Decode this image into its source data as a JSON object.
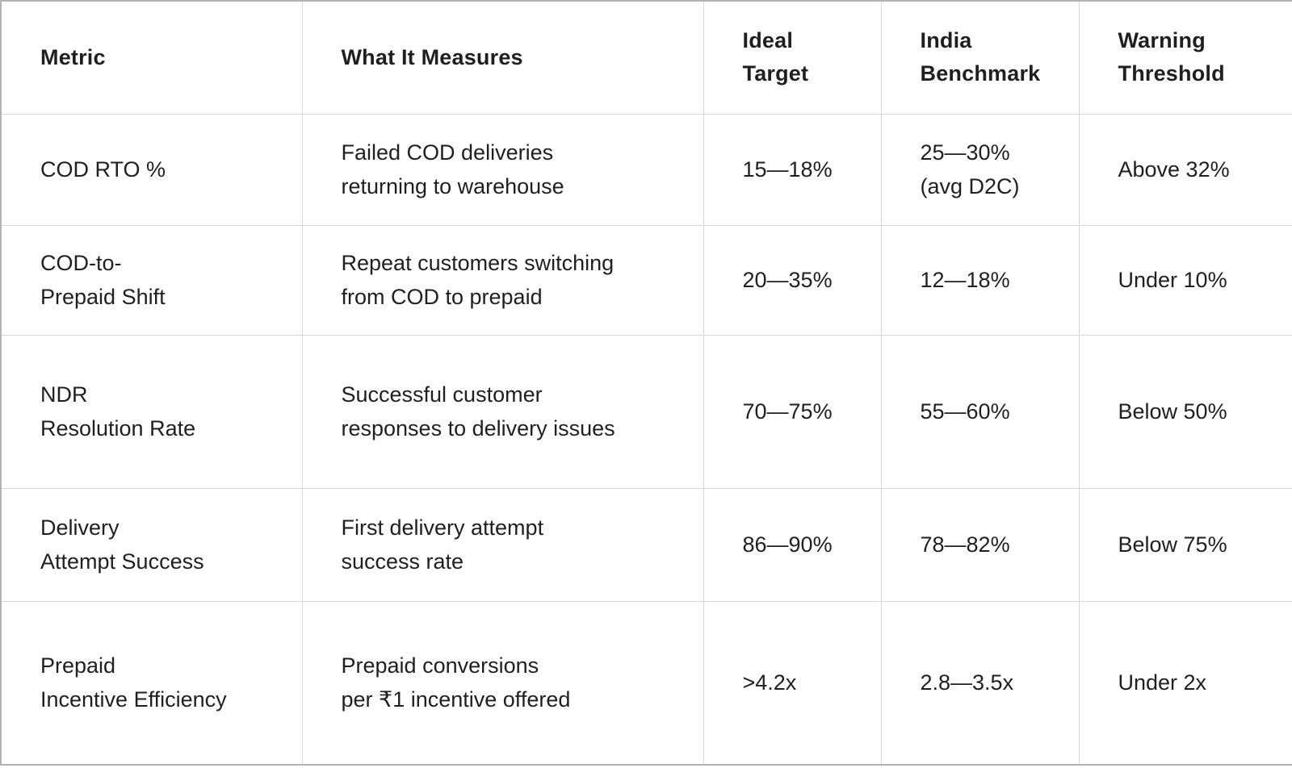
{
  "chart_data": {
    "type": "table",
    "columns": [
      "Metric",
      "What It Measures",
      "Ideal Target",
      "India Benchmark",
      "Warning Threshold"
    ],
    "rows": [
      [
        "COD RTO %",
        "Failed COD deliveries returning to warehouse",
        "15—18%",
        "25—30% (avg D2C)",
        "Above 32%"
      ],
      [
        "COD-to-Prepaid Shift",
        "Repeat customers switching from COD to prepaid",
        "20—35%",
        "12—18%",
        "Under 10%"
      ],
      [
        "NDR Resolution Rate",
        "Successful customer responses to delivery issues",
        "70—75%",
        "55—60%",
        "Below 50%"
      ],
      [
        "Delivery Attempt Success",
        "First delivery attempt success rate",
        "86—90%",
        "78—82%",
        "Below 75%"
      ],
      [
        "Prepaid Incentive Efficiency",
        "Prepaid conversions per ₹1 incentive offered",
        ">4.2x",
        "2.8—3.5x",
        "Under 2x"
      ]
    ]
  },
  "table": {
    "headers": {
      "metric": "Metric",
      "measures": "What It Measures",
      "ideal": "Ideal\nTarget",
      "benchmark": "India\nBenchmark",
      "warning": "Warning\nThreshold"
    },
    "rows": [
      {
        "metric": "COD RTO %",
        "measures": "Failed COD deliveries\nreturning to warehouse",
        "ideal": "15—18%",
        "benchmark": "25—30%\n(avg D2C)",
        "warning": "Above 32%"
      },
      {
        "metric": "COD-to-\nPrepaid Shift",
        "measures": "Repeat customers switching\nfrom COD to prepaid",
        "ideal": "20—35%",
        "benchmark": "12—18%",
        "warning": "Under 10%"
      },
      {
        "metric": "NDR\nResolution Rate",
        "measures": "Successful customer\nresponses to delivery issues",
        "ideal": "70—75%",
        "benchmark": "55—60%",
        "warning": "Below 50%"
      },
      {
        "metric": "Delivery\nAttempt Success",
        "measures": "First delivery attempt\nsuccess rate",
        "ideal": "86—90%",
        "benchmark": "78—82%",
        "warning": "Below 75%"
      },
      {
        "metric": "Prepaid\nIncentive Efficiency",
        "measures": "Prepaid conversions\nper ₹1 incentive offered",
        "ideal": ">4.2x",
        "benchmark": "2.8—3.5x",
        "warning": "Under 2x"
      }
    ]
  },
  "colors": {
    "background": "#ffffff",
    "text": "#1f1f1f",
    "grid_line": "#d7d7d7",
    "outer_border": "#b2b2b2"
  }
}
